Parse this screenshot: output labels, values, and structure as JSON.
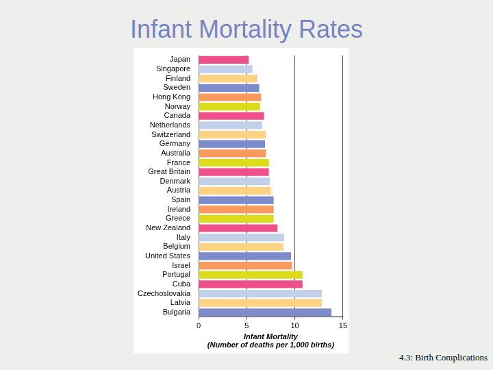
{
  "chart_data": {
    "type": "bar",
    "title": "Infant Mortality Rates",
    "orientation": "horizontal",
    "categories": [
      "Japan",
      "Singapore",
      "Finland",
      "Sweden",
      "Hong Kong",
      "Norway",
      "Canada",
      "Netherlands",
      "Switzerland",
      "Germany",
      "Australia",
      "France",
      "Great Britain",
      "Denmark",
      "Austria",
      "Spain",
      "Ireland",
      "Greece",
      "New Zealand",
      "Italy",
      "Belgium",
      "United States",
      "Israel",
      "Portugal",
      "Cuba",
      "Czechoslovakia",
      "Latvia",
      "Bulgaria"
    ],
    "values": [
      5.2,
      5.6,
      6.1,
      6.3,
      6.5,
      6.4,
      6.8,
      6.6,
      7.0,
      6.9,
      7.0,
      7.3,
      7.3,
      7.4,
      7.5,
      7.8,
      7.8,
      7.8,
      8.2,
      8.9,
      8.8,
      9.6,
      9.7,
      10.8,
      10.8,
      12.8,
      12.8,
      13.8
    ],
    "colors": [
      "#f0508a",
      "#c2d0e8",
      "#fdd283",
      "#7c8bcc",
      "#fa9a5c",
      "#dcdc1c",
      "#f0508a",
      "#c2d0e8",
      "#fdd283",
      "#7c8bcc",
      "#fa9a5c",
      "#dcdc1c",
      "#f0508a",
      "#c2d0e8",
      "#fdd283",
      "#7c8bcc",
      "#fa9a5c",
      "#dcdc1c",
      "#f0508a",
      "#c2d0e8",
      "#fdd283",
      "#7c8bcc",
      "#fa9a5c",
      "#dcdc1c",
      "#f0508a",
      "#c2d0e8",
      "#fdd283",
      "#7c8bcc"
    ],
    "xlabel": [
      "Infant Mortality",
      "(Number of deaths per 1,000 births)"
    ],
    "xlim": [
      0,
      15
    ],
    "xticks": [
      0,
      5,
      10,
      15
    ],
    "grid": true
  },
  "footer": "4.3: Birth Complications"
}
